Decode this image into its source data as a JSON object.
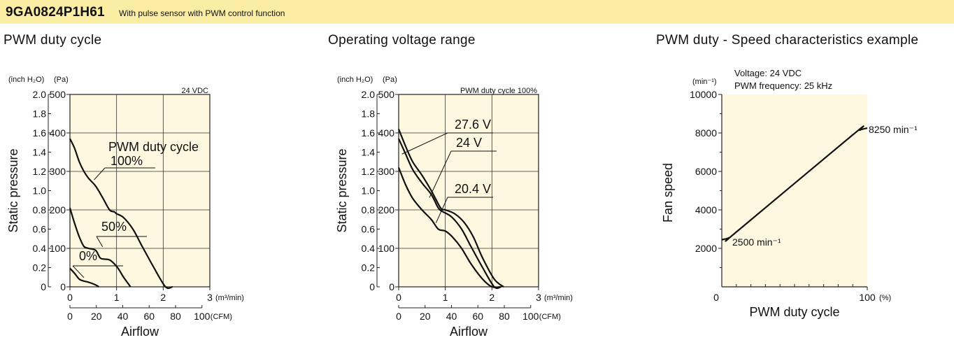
{
  "header": {
    "model": "9GA0824P1H61",
    "description": "With pulse sensor with PWM control function"
  },
  "chart_data": [
    {
      "type": "line",
      "title": "PWM duty cycle",
      "annotation": "24 VDC",
      "xlabel": "Airflow",
      "ylabel": "Static pressure",
      "x_unit_primary": "(m³/min)",
      "x_unit_secondary": "(CFM)",
      "y_unit_primary": "(inch H₂O)",
      "y_unit_secondary": "(Pa)",
      "xlim": [
        0,
        3
      ],
      "ylim": [
        0,
        500
      ],
      "x_ticks_m3": [
        "0",
        "1",
        "2",
        "3"
      ],
      "x_ticks_cfm": [
        "0",
        "20",
        "40",
        "60",
        "80",
        "100"
      ],
      "y_ticks_pa": [
        "0",
        "100",
        "200",
        "300",
        "400",
        "500"
      ],
      "y_ticks_inch": [
        "0",
        "0.2",
        "0.4",
        "0.6",
        "0.8",
        "1.0",
        "1.2",
        "1.4",
        "1.6",
        "1.8",
        "2.0"
      ],
      "legend_title": "PWM duty cycle",
      "series": [
        {
          "name": "100%",
          "x": [
            0,
            0.1,
            0.2,
            0.3,
            0.4,
            0.55,
            0.7,
            0.85,
            0.95,
            1.0,
            1.15,
            1.35,
            1.55,
            1.8,
            2.05,
            2.2
          ],
          "y": [
            385,
            360,
            325,
            300,
            282,
            262,
            232,
            200,
            195,
            190,
            180,
            150,
            105,
            50,
            0,
            0
          ]
        },
        {
          "name": "50%",
          "x": [
            0,
            0.1,
            0.2,
            0.3,
            0.4,
            0.55,
            0.65,
            0.75,
            0.85,
            0.95,
            1.05,
            1.15,
            1.3
          ],
          "y": [
            205,
            165,
            130,
            105,
            100,
            95,
            75,
            72,
            70,
            60,
            45,
            25,
            0
          ]
        },
        {
          "name": "0%",
          "x": [
            0,
            0.1,
            0.2,
            0.3,
            0.4,
            0.55,
            0.62
          ],
          "y": [
            48,
            35,
            20,
            15,
            12,
            5,
            0
          ]
        }
      ]
    },
    {
      "type": "line",
      "title": "Operating voltage range",
      "annotation": "PWM duty cycle 100%",
      "xlabel": "Airflow",
      "ylabel": "Static pressure",
      "x_unit_primary": "(m³/min)",
      "x_unit_secondary": "(CFM)",
      "y_unit_primary": "(inch H₂O)",
      "y_unit_secondary": "(Pa)",
      "xlim": [
        0,
        3
      ],
      "ylim": [
        0,
        500
      ],
      "x_ticks_m3": [
        "0",
        "1",
        "2",
        "3"
      ],
      "x_ticks_cfm": [
        "0",
        "20",
        "40",
        "60",
        "80",
        "100"
      ],
      "y_ticks_pa": [
        "0",
        "100",
        "200",
        "300",
        "400",
        "500"
      ],
      "y_ticks_inch": [
        "0",
        "0.2",
        "0.4",
        "0.6",
        "0.8",
        "1.0",
        "1.2",
        "1.4",
        "1.6",
        "1.8",
        "2.0"
      ],
      "series": [
        {
          "name": "27.6 V",
          "x": [
            0,
            0.15,
            0.3,
            0.5,
            0.7,
            0.9,
            1.0,
            1.2,
            1.4,
            1.6,
            1.8,
            2.05,
            2.25
          ],
          "y": [
            410,
            365,
            325,
            290,
            250,
            205,
            200,
            190,
            168,
            130,
            75,
            20,
            0
          ]
        },
        {
          "name": "24 V",
          "x": [
            0,
            0.15,
            0.3,
            0.5,
            0.7,
            0.85,
            0.95,
            1.0,
            1.15,
            1.35,
            1.55,
            1.8,
            2.05,
            2.2
          ],
          "y": [
            385,
            345,
            305,
            270,
            240,
            205,
            195,
            192,
            180,
            150,
            105,
            50,
            0,
            0
          ]
        },
        {
          "name": "20.4 V",
          "x": [
            0,
            0.15,
            0.3,
            0.5,
            0.7,
            0.85,
            1.0,
            1.15,
            1.35,
            1.55,
            1.8,
            2.0,
            2.18
          ],
          "y": [
            310,
            265,
            230,
            200,
            175,
            150,
            145,
            130,
            100,
            60,
            20,
            0,
            0
          ]
        }
      ]
    },
    {
      "type": "line",
      "title": "PWM duty - Speed characteristics example",
      "annotation_lines": [
        "Voltage: 24 VDC",
        "PWM frequency: 25 kHz"
      ],
      "xlabel": "PWM duty cycle",
      "ylabel": "Fan speed",
      "x_unit": "(%)",
      "y_unit": "(min⁻¹)",
      "xlim": [
        0,
        100
      ],
      "ylim": [
        0,
        10000
      ],
      "x_ticks": [
        "0",
        "100"
      ],
      "y_ticks": [
        "2000",
        "4000",
        "6000",
        "8000",
        "10000"
      ],
      "series": [
        {
          "name": "",
          "x": [
            0,
            5,
            10,
            90,
            95,
            100
          ],
          "y": [
            2450,
            2550,
            2850,
            7900,
            8150,
            8250
          ]
        }
      ],
      "labels": [
        {
          "text": "2500 min⁻¹",
          "x": 10,
          "y": 2280
        },
        {
          "text": "8250 min⁻¹",
          "x": 100,
          "y": 8250
        }
      ]
    }
  ]
}
